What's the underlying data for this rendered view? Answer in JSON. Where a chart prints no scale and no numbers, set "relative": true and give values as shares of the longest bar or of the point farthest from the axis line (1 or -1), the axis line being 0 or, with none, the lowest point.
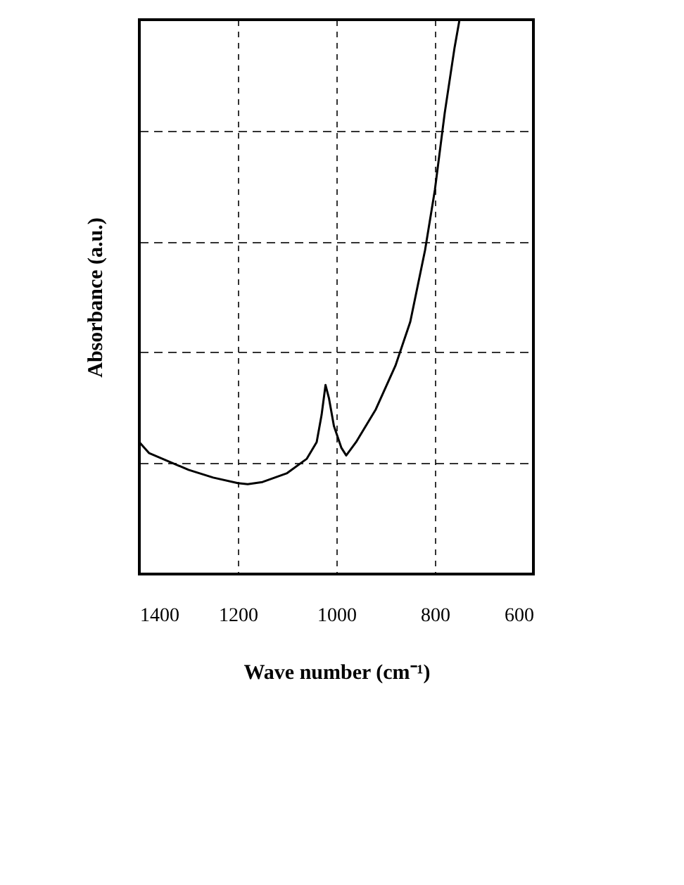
{
  "chart_data": {
    "type": "line",
    "xlabel": "Wave number (cm⁻¹)",
    "ylabel": "Absorbance (a.u.)",
    "relative": true,
    "xlim": [
      1400,
      600
    ],
    "xticks": [
      1400,
      1200,
      1000,
      800,
      600
    ],
    "grid": true,
    "line_style": "solid",
    "marker": "none",
    "series": [
      {
        "color": "#000000",
        "x": [
          1400,
          1380,
          1300,
          1250,
          1200,
          1180,
          1150,
          1100,
          1060,
          1040,
          1030,
          1022,
          1015,
          1005,
          990,
          980,
          960,
          920,
          880,
          850,
          820,
          800,
          780,
          760,
          750
        ],
        "values": [
          0.238,
          0.218,
          0.188,
          0.174,
          0.164,
          0.162,
          0.166,
          0.182,
          0.208,
          0.238,
          0.287,
          0.341,
          0.317,
          0.267,
          0.228,
          0.214,
          0.238,
          0.297,
          0.376,
          0.455,
          0.584,
          0.693,
          0.832,
          0.95,
          1.0
        ]
      }
    ]
  }
}
